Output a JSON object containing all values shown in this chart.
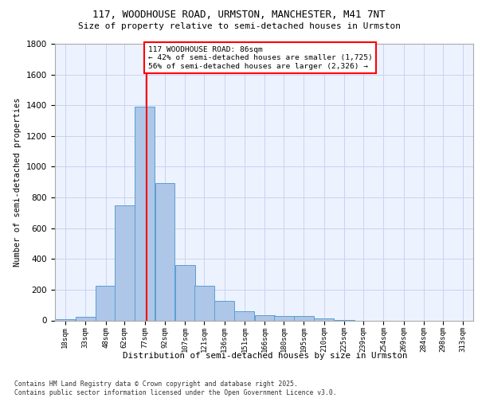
{
  "title_line1": "117, WOODHOUSE ROAD, URMSTON, MANCHESTER, M41 7NT",
  "title_line2": "Size of property relative to semi-detached houses in Urmston",
  "xlabel": "Distribution of semi-detached houses by size in Urmston",
  "ylabel": "Number of semi-detached properties",
  "footer_line1": "Contains HM Land Registry data © Crown copyright and database right 2025.",
  "footer_line2": "Contains public sector information licensed under the Open Government Licence v3.0.",
  "annotation_line1": "117 WOODHOUSE ROAD: 86sqm",
  "annotation_line2": "← 42% of semi-detached houses are smaller (1,725)",
  "annotation_line3": "56% of semi-detached houses are larger (2,326) →",
  "bar_color": "#aec6e8",
  "bar_edge_color": "#5a9fd4",
  "vline_color": "red",
  "vline_x": 86,
  "categories": [
    18,
    33,
    48,
    62,
    77,
    92,
    107,
    121,
    136,
    151,
    166,
    180,
    195,
    210,
    225,
    239,
    254,
    269,
    284,
    298,
    313
  ],
  "bin_width": 15,
  "values": [
    10,
    25,
    225,
    750,
    1390,
    895,
    360,
    225,
    125,
    60,
    35,
    30,
    30,
    15,
    5,
    0,
    0,
    0,
    0,
    0,
    0
  ],
  "ylim": [
    0,
    1800
  ],
  "yticks": [
    0,
    200,
    400,
    600,
    800,
    1000,
    1200,
    1400,
    1600,
    1800
  ],
  "xlim_min": 18,
  "xlim_max": 328,
  "background_color": "#edf2ff",
  "grid_color": "#c8d4f0"
}
